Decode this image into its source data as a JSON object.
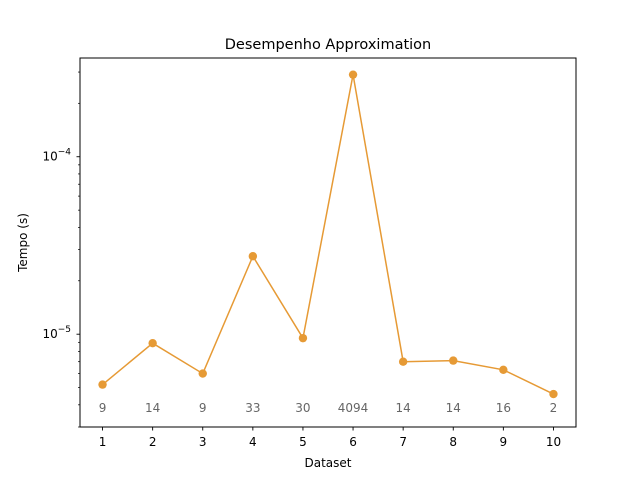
{
  "chart_data": {
    "type": "line",
    "title": "Desempenho Approximation",
    "xlabel": "Dataset",
    "ylabel": "Tempo (s)",
    "yscale": "log",
    "ylim": [
      3e-06,
      0.00036
    ],
    "grid": false,
    "x": [
      1,
      2,
      3,
      4,
      5,
      6,
      7,
      8,
      9,
      10
    ],
    "series": [
      {
        "values": [
          5.2e-06,
          8.9e-06,
          6e-06,
          2.75e-05,
          9.5e-06,
          0.00029,
          7e-06,
          7.1e-06,
          6.3e-06,
          4.6e-06
        ],
        "color": "#e69a35",
        "marker": "circle"
      }
    ],
    "point_annotations": [
      "9",
      "14",
      "9",
      "33",
      "30",
      "4094",
      "14",
      "14",
      "16",
      "2"
    ],
    "ytick_labels": [
      {
        "value": 1e-05,
        "base": "10",
        "exp": "−5"
      },
      {
        "value": 0.0001,
        "base": "10",
        "exp": "−4"
      }
    ]
  }
}
